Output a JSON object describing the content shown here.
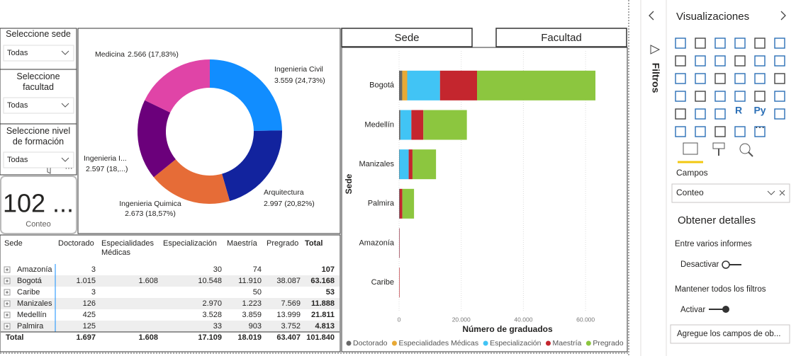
{
  "slicers": [
    {
      "title": "Seleccione sede",
      "value": "Todas"
    },
    {
      "title": "Seleccione facultad",
      "value": "Todas"
    },
    {
      "title": "Seleccione nivel de formación",
      "value": "Todas"
    }
  ],
  "card": {
    "value": "102 ...",
    "label": "Conteo"
  },
  "buttons": [
    "Sede",
    "Facultad"
  ],
  "chart_data": [
    {
      "type": "pie",
      "donut": true,
      "categories": [
        "Ingenieria Civil",
        "Arquitectura",
        "Ingenieria Quimica",
        "Ingenieria I...",
        "Medicina"
      ],
      "values": [
        3559,
        2997,
        2673,
        2597,
        2566
      ],
      "value_labels": [
        "3.559 (24,73%)",
        "2.997 (20,82%)",
        "2.673 (18,57%)",
        "2.597 (18,...)",
        "2.566 (17,83%)"
      ],
      "colors": [
        "#118dff",
        "#12239e",
        "#e66c37",
        "#6b007b",
        "#e044a7"
      ]
    },
    {
      "type": "bar",
      "orientation": "horizontal",
      "stacked": true,
      "categories": [
        "Bogotá",
        "Medellín",
        "Manizales",
        "Palmira",
        "Amazonía",
        "Caribe"
      ],
      "series": [
        {
          "name": "Doctorado",
          "color": "#686868",
          "values": [
            1015,
            425,
            126,
            125,
            3,
            3
          ]
        },
        {
          "name": "Especialidades Médicas",
          "color": "#e8a935",
          "values": [
            1608,
            null,
            null,
            null,
            null,
            null
          ]
        },
        {
          "name": "Especialización",
          "color": "#41c4f5",
          "values": [
            10548,
            3528,
            2970,
            33,
            30,
            null
          ]
        },
        {
          "name": "Maestría",
          "color": "#c4262e",
          "values": [
            11910,
            3859,
            1223,
            903,
            74,
            50
          ]
        },
        {
          "name": "Pregrado",
          "color": "#8cc63f",
          "values": [
            38087,
            13999,
            7569,
            3752,
            null,
            null
          ]
        }
      ],
      "xlim": [
        0,
        70000
      ],
      "xticks": [
        0,
        {
          "value": 20000,
          "label": "20.000"
        },
        {
          "value": 40000,
          "label": "40.000"
        },
        {
          "value": 60000,
          "label": "60.000"
        }
      ],
      "xlabel": "Número de graduados",
      "ylabel": "Sede",
      "grid": true,
      "legend": "bottom"
    }
  ],
  "table": {
    "headers": [
      "Sede",
      "Doctorado",
      "Especialidades Médicas",
      "Especialización",
      "Maestría",
      "Pregrado",
      "Total"
    ],
    "rows": [
      [
        "Amazonía",
        "3",
        null,
        "30",
        "74",
        null,
        "107"
      ],
      [
        "Bogotá",
        "1.015",
        "1.608",
        "10.548",
        "11.910",
        "38.087",
        "63.168"
      ],
      [
        "Caribe",
        "3",
        null,
        null,
        "50",
        null,
        "53"
      ],
      [
        "Manizales",
        "126",
        null,
        "2.970",
        "1.223",
        "7.569",
        "11.888"
      ],
      [
        "Medellín",
        "425",
        null,
        "3.528",
        "3.859",
        "13.999",
        "21.811"
      ],
      [
        "Palmira",
        "125",
        null,
        "33",
        "903",
        "3.752",
        "4.813"
      ]
    ],
    "total": [
      "Total",
      "1.697",
      "1.608",
      "17.109",
      "18.019",
      "63.407",
      "101.840"
    ]
  },
  "pane": {
    "filters_tab": "Filtros",
    "title": "Visualizaciones",
    "icon_labels": [
      "R",
      "Py"
    ],
    "fields_label": "Campos",
    "field": "Conteo",
    "details_title": "Obtener detalles",
    "cross_report": "Entre varios informes",
    "cross_state": "Desactivar",
    "keep_filters": "Mantener todos los filtros",
    "keep_state": "Activar",
    "drop_hint": "Agregue los campos de ob..."
  }
}
